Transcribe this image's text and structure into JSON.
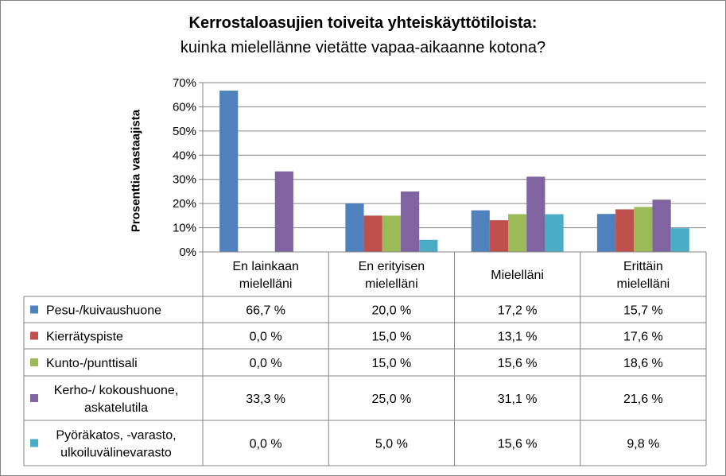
{
  "chart_data": {
    "type": "bar",
    "title": "Kerrostaloasujien toiveita yhteiskäyttötiloista:",
    "subtitle": "kuinka mielellänne vietätte vapaa-aikaanne kotona?",
    "ylabel": "Prosenttia vastaajista",
    "xlabel": "",
    "ylim": [
      0,
      70
    ],
    "yticks": [
      "0%",
      "10%",
      "20%",
      "30%",
      "40%",
      "50%",
      "60%",
      "70%"
    ],
    "grid": true,
    "legend": "data-table",
    "categories": [
      [
        "En lainkaan",
        "mielelläni"
      ],
      [
        "En erityisen",
        "mielelläni"
      ],
      [
        "Mielelläni"
      ],
      [
        "Erittäin",
        "mielelläni"
      ]
    ],
    "series": [
      {
        "name": [
          "Pesu-/kuivaushuone"
        ],
        "color": "#4F81BD",
        "values": [
          66.7,
          20.0,
          17.2,
          15.7
        ],
        "labels": [
          "66,7 %",
          "20,0 %",
          "17,2 %",
          "15,7 %"
        ]
      },
      {
        "name": [
          "Kierrätyspiste"
        ],
        "color": "#C0504D",
        "values": [
          0.0,
          15.0,
          13.1,
          17.6
        ],
        "labels": [
          "0,0 %",
          "15,0 %",
          "13,1 %",
          "17,6 %"
        ]
      },
      {
        "name": [
          "Kunto-/punttisali"
        ],
        "color": "#9BBB59",
        "values": [
          0.0,
          15.0,
          15.6,
          18.6
        ],
        "labels": [
          "0,0 %",
          "15,0 %",
          "15,6 %",
          "18,6 %"
        ]
      },
      {
        "name": [
          "Kerho-/ kokoushuone,",
          "askatelutila"
        ],
        "color": "#8064A2",
        "values": [
          33.3,
          25.0,
          31.1,
          21.6
        ],
        "labels": [
          "33,3 %",
          "25,0 %",
          "31,1 %",
          "21,6 %"
        ]
      },
      {
        "name": [
          "Pyöräkatos, -varasto,",
          "ulkoiluvälinevarasto"
        ],
        "color": "#4BACC6",
        "values": [
          0.0,
          5.0,
          15.6,
          9.8
        ],
        "labels": [
          "0,0 %",
          "5,0 %",
          "15,6 %",
          "9,8 %"
        ]
      }
    ]
  }
}
